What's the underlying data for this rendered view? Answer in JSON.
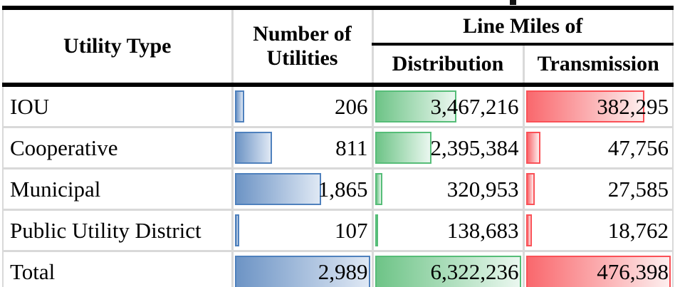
{
  "table": {
    "headers": {
      "utility_type": "Utility Type",
      "number_of_utilities": "Number of Utilities",
      "line_miles_of": "Line Miles of",
      "distribution": "Distribution",
      "transmission": "Transmission"
    },
    "rows": [
      {
        "utility_type": "IOU",
        "utilities": "206",
        "utilities_bar_pct": "6.9%",
        "distribution": "3,467,216",
        "distribution_bar_pct": "54.8%",
        "transmission": "382,295",
        "transmission_bar_pct": "80.2%"
      },
      {
        "utility_type": "Cooperative",
        "utilities": "811",
        "utilities_bar_pct": "27.1%",
        "distribution": "2,395,384",
        "distribution_bar_pct": "37.9%",
        "transmission": "47,756",
        "transmission_bar_pct": "10.0%"
      },
      {
        "utility_type": "Municipal",
        "utilities": "1,865",
        "utilities_bar_pct": "62.4%",
        "distribution": "320,953",
        "distribution_bar_pct": "5.1%",
        "transmission": "27,585",
        "transmission_bar_pct": "5.8%"
      },
      {
        "utility_type": "Public Utility District",
        "utilities": "107",
        "utilities_bar_pct": "3.6%",
        "distribution": "138,683",
        "distribution_bar_pct": "2.2%",
        "transmission": "18,762",
        "transmission_bar_pct": "3.9%"
      },
      {
        "utility_type": "Total",
        "utilities": "2,989",
        "utilities_bar_pct": "100%",
        "distribution": "6,322,236",
        "distribution_bar_pct": "100%",
        "transmission": "476,398",
        "transmission_bar_pct": "100%"
      }
    ]
  },
  "colors": {
    "bar_blue_border": "#4f81bd",
    "bar_blue_fill_start": "#6d94c5",
    "bar_green_border": "#56bd78",
    "bar_green_fill_start": "#6ec487",
    "bar_red_border": "#fa5157",
    "bar_red_fill_start": "#f9686d",
    "gridline_gray": "#d9d9d9",
    "section_border_black": "#000000"
  },
  "chart_data": {
    "type": "table",
    "title": "",
    "columns": [
      "Utility Type",
      "Number of Utilities",
      "Line Miles of Distribution",
      "Line Miles of Transmission"
    ],
    "rows": [
      {
        "utility_type": "IOU",
        "number_of_utilities": 206,
        "distribution_line_miles": 3467216,
        "transmission_line_miles": 382295
      },
      {
        "utility_type": "Cooperative",
        "number_of_utilities": 811,
        "distribution_line_miles": 2395384,
        "transmission_line_miles": 47756
      },
      {
        "utility_type": "Municipal",
        "number_of_utilities": 1865,
        "distribution_line_miles": 320953,
        "transmission_line_miles": 27585
      },
      {
        "utility_type": "Public Utility District",
        "number_of_utilities": 107,
        "distribution_line_miles": 138683,
        "transmission_line_miles": 18762
      },
      {
        "utility_type": "Total",
        "number_of_utilities": 2989,
        "distribution_line_miles": 6322236,
        "transmission_line_miles": 476398
      }
    ],
    "data_bars": {
      "number_of_utilities": {
        "color": "blue",
        "max": 2989
      },
      "distribution_line_miles": {
        "color": "green",
        "max": 6322236
      },
      "transmission_line_miles": {
        "color": "red",
        "max": 476398
      },
      "scaling": "bar length proportional to value / column maximum (Total row = full bar)"
    }
  }
}
